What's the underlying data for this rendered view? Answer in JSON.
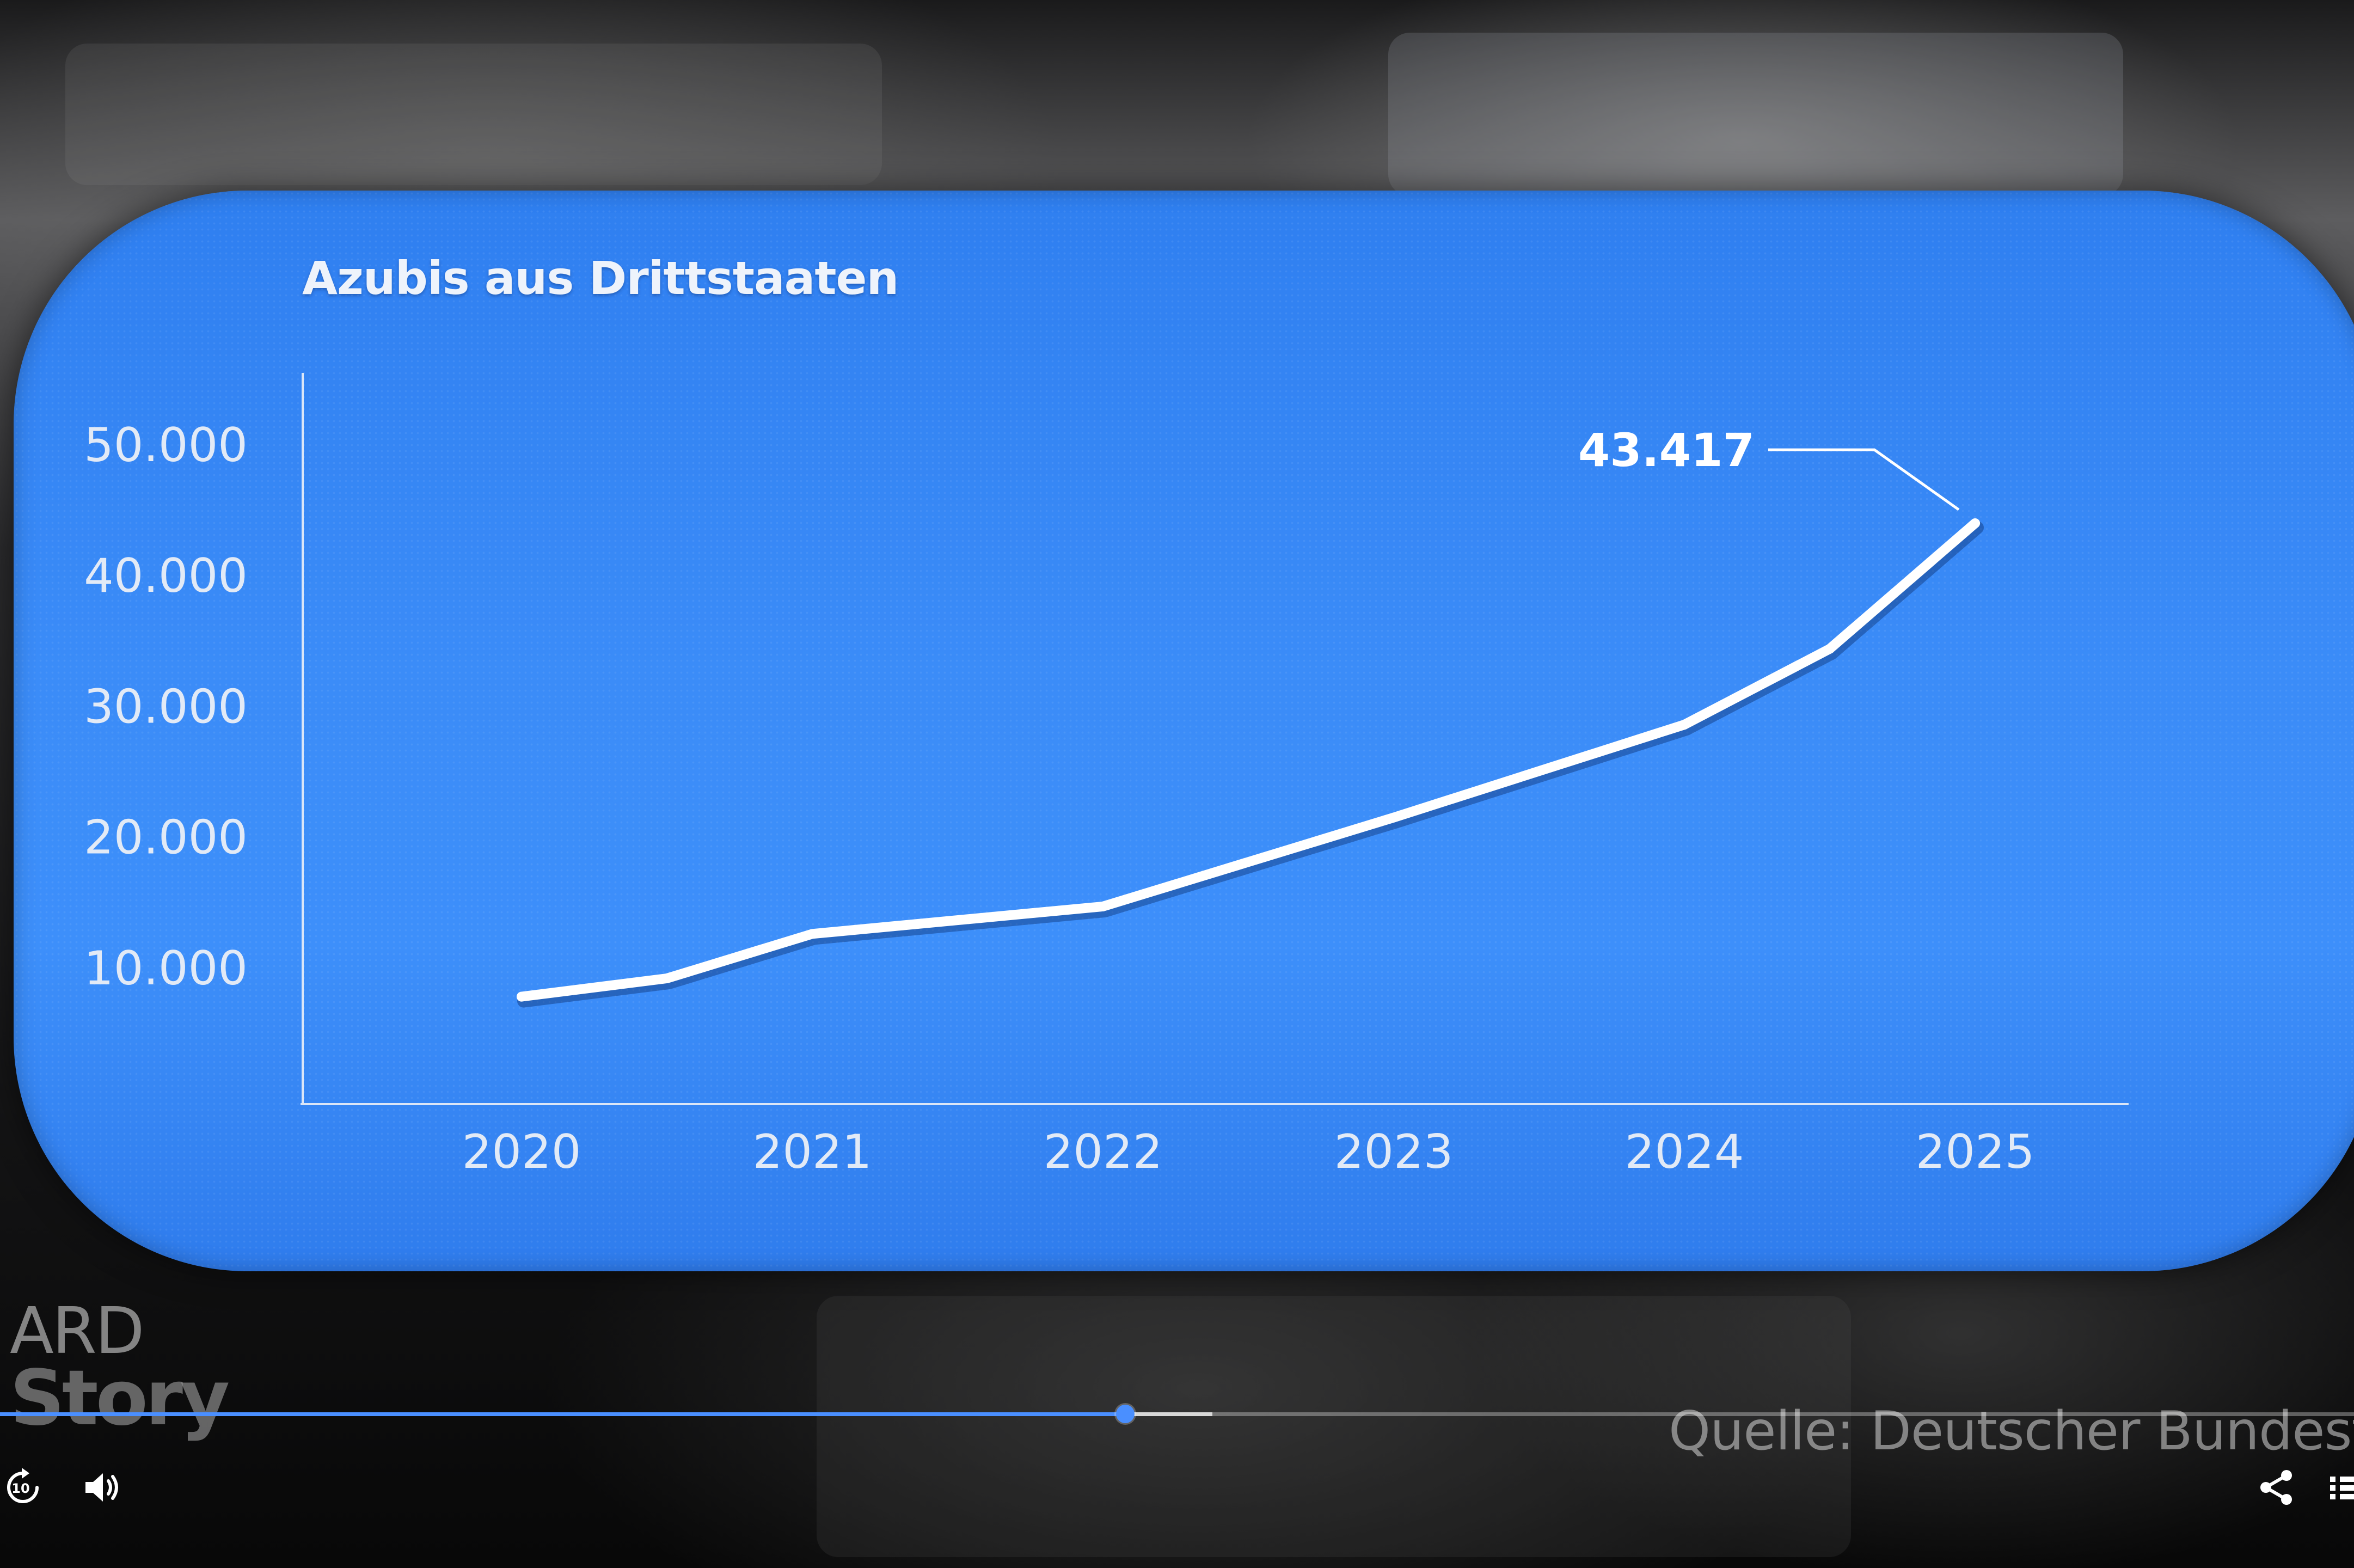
{
  "chart_data": {
    "type": "line",
    "title": "Azubis aus Drittstaaten",
    "xlabel": "",
    "ylabel": "",
    "x": [
      2020,
      2020.5,
      2021,
      2022,
      2023,
      2024,
      2024.5,
      2025
    ],
    "y": [
      7800,
      9200,
      12600,
      14700,
      21500,
      28600,
      34400,
      44000
    ],
    "categories": [
      "2020",
      "2021",
      "2022",
      "2023",
      "2024",
      "2025"
    ],
    "yticks": [
      "10.000",
      "20.000",
      "30.000",
      "40.000",
      "50.000"
    ],
    "ylim": [
      0,
      50000
    ],
    "grid": false,
    "annotation": {
      "label": "43.417",
      "x": 2025
    },
    "line_color": "#ffffff",
    "background_color": "#3b8cf8"
  },
  "overlay": {
    "brand_top": "ARD",
    "brand_bottom": "Story",
    "source": "Quelle: Deutscher Bundest"
  },
  "player": {
    "progress": 0.478,
    "buffered": 0.515,
    "accent_color": "#4a8fff",
    "icons": [
      "replay-10-icon",
      "volume-icon",
      "share-icon",
      "playlist-icon"
    ],
    "replay_label": "10"
  }
}
